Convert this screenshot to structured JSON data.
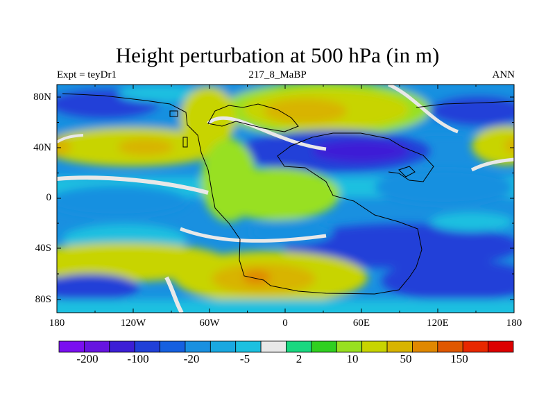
{
  "title": "Height perturbation at 500 hPa (in m)",
  "left_string": "Expt = teyDr1",
  "center_string": "217_8_MaBP",
  "right_string": "ANN",
  "y_ticks": [
    "80N",
    "40N",
    "0",
    "40S",
    "80S"
  ],
  "x_ticks": [
    "180",
    "120W",
    "60W",
    "0",
    "60E",
    "120E",
    "180"
  ],
  "colorbar": {
    "colors": [
      "#7a0ff0",
      "#6614e0",
      "#3c1fd6",
      "#2040d8",
      "#1560e0",
      "#1990e0",
      "#19a8e0",
      "#1cc0e0",
      "#e8e8e8",
      "#19d880",
      "#30d020",
      "#98e020",
      "#c8d400",
      "#d8b400",
      "#e08800",
      "#e05800",
      "#e82800",
      "#dd0000"
    ],
    "labels": [
      "-200",
      "-100",
      "-20",
      "-5",
      "2",
      "10",
      "50",
      "150"
    ]
  },
  "palette": {
    "neutral": "#e8e8e8",
    "light_blue": "#1cc0e0",
    "blue": "#1990e0",
    "dark_blue": "#2040d8",
    "deep_blue": "#3c1fd6",
    "light_green": "#98e020",
    "green": "#30d020",
    "yellow": "#c8d400",
    "orange": "#d8b400",
    "dark_orange": "#e08800",
    "red_orange": "#e05800"
  }
}
